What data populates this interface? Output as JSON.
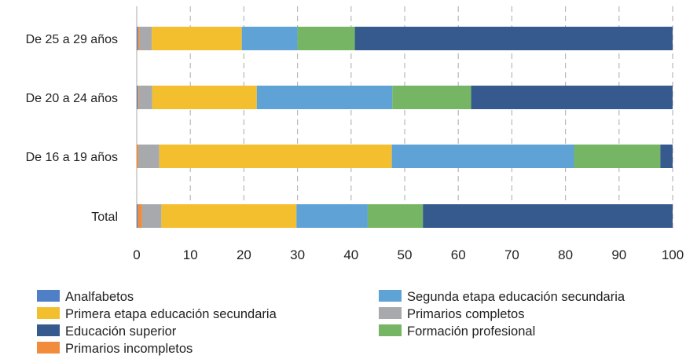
{
  "chart_data": {
    "type": "bar",
    "orientation": "horizontal",
    "stacked": true,
    "categories": [
      "De 25 a 29 años",
      "De 20 a 24 años",
      "De 16 a 19 años",
      "Total"
    ],
    "xlim": [
      0,
      100
    ],
    "xticks": [
      "0",
      "10",
      "20",
      "30",
      "40",
      "50",
      "60",
      "70",
      "80",
      "90",
      "100"
    ],
    "grid": "vertical dashed",
    "legend_position": "bottom",
    "series": [
      {
        "name": "Analfabetos",
        "color": "#4f7fc6",
        "values": [
          0.2,
          0.2,
          0.0,
          0.2
        ]
      },
      {
        "name": "Primarios incompletos",
        "color": "#f08c3c",
        "values": [
          0.3,
          0.2,
          0.3,
          0.8
        ]
      },
      {
        "name": "Primarios completos",
        "color": "#a7a9ac",
        "values": [
          2.3,
          2.5,
          3.9,
          3.6
        ]
      },
      {
        "name": "Primera etapa educación secundaria",
        "color": "#f4bf2e",
        "values": [
          16.8,
          19.5,
          43.4,
          25.2
        ]
      },
      {
        "name": "Segunda etapa educación secundaria",
        "color": "#5fa3d6",
        "values": [
          10.4,
          25.3,
          34.0,
          13.3
        ]
      },
      {
        "name": "Formación profesional",
        "color": "#76b563",
        "values": [
          10.7,
          14.7,
          16.1,
          10.3
        ]
      },
      {
        "name": "Educación superior",
        "color": "#36598e",
        "values": [
          59.3,
          37.6,
          2.3,
          46.6
        ]
      }
    ],
    "legend_columns": [
      [
        "Analfabetos",
        "Primera etapa educación secundaria",
        "Educación superior",
        "Primarios incompletos"
      ],
      [
        "Segunda etapa educación secundaria",
        "Primarios completos",
        "Formación profesional"
      ]
    ]
  }
}
